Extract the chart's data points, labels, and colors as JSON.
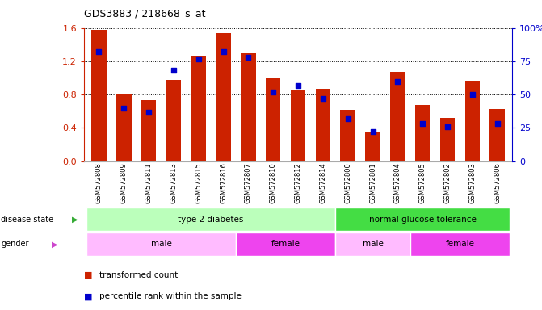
{
  "title": "GDS3883 / 218668_s_at",
  "samples": [
    "GSM572808",
    "GSM572809",
    "GSM572811",
    "GSM572813",
    "GSM572815",
    "GSM572816",
    "GSM572807",
    "GSM572810",
    "GSM572812",
    "GSM572814",
    "GSM572800",
    "GSM572801",
    "GSM572804",
    "GSM572805",
    "GSM572802",
    "GSM572803",
    "GSM572806"
  ],
  "red_values": [
    1.58,
    0.8,
    0.73,
    0.98,
    1.27,
    1.54,
    1.3,
    1.0,
    0.85,
    0.87,
    0.62,
    0.36,
    1.07,
    0.68,
    0.52,
    0.97,
    0.63
  ],
  "blue_values": [
    82,
    40,
    37,
    68,
    77,
    82,
    78,
    52,
    57,
    47,
    32,
    22,
    60,
    28,
    26,
    50,
    28
  ],
  "ylim_left": [
    0,
    1.6
  ],
  "ylim_right": [
    0,
    100
  ],
  "yticks_left": [
    0,
    0.4,
    0.8,
    1.2,
    1.6
  ],
  "yticks_right": [
    0,
    25,
    50,
    75,
    100
  ],
  "disease_state": [
    {
      "label": "type 2 diabetes",
      "start": 0,
      "end": 9,
      "color": "#bbffbb"
    },
    {
      "label": "normal glucose tolerance",
      "start": 10,
      "end": 16,
      "color": "#44dd44"
    }
  ],
  "gender": [
    {
      "label": "male",
      "start": 0,
      "end": 5,
      "color": "#ffbbff"
    },
    {
      "label": "female",
      "start": 6,
      "end": 9,
      "color": "#ee44ee"
    },
    {
      "label": "male",
      "start": 10,
      "end": 12,
      "color": "#ffbbff"
    },
    {
      "label": "female",
      "start": 13,
      "end": 16,
      "color": "#ee44ee"
    }
  ],
  "bar_color": "#cc2200",
  "dot_color": "#0000cc",
  "background_color": "#ffffff",
  "left_axis_color": "#cc2200",
  "right_axis_color": "#0000cc",
  "legend_dot_color_red": "#cc2200",
  "legend_dot_color_blue": "#0000cc"
}
